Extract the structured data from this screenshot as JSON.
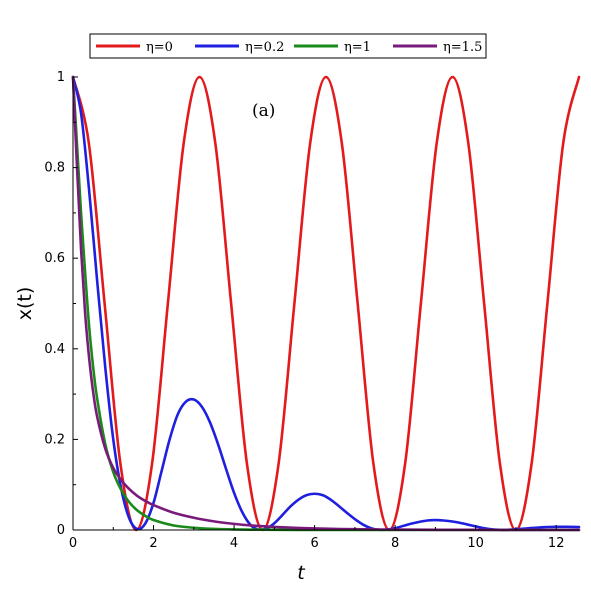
{
  "chart_data": {
    "type": "line",
    "xlabel": "t",
    "ylabel": "x(t)",
    "annotation": "(a)",
    "xlim": [
      0,
      12.566
    ],
    "ylim": [
      0,
      1
    ],
    "xticks": [
      "0",
      "2",
      "4",
      "6",
      "8",
      "10",
      "12"
    ],
    "yticks": [
      "0",
      "0.2",
      "0.4",
      "0.6",
      "0.8",
      "1"
    ],
    "grid": false,
    "legend_position": "top",
    "series": [
      {
        "name": "η=0",
        "color": "#e31a1c",
        "x": [
          0,
          0.393,
          0.785,
          1.178,
          1.571,
          1.963,
          2.356,
          2.749,
          3.142,
          3.534,
          3.927,
          4.32,
          4.712,
          5.105,
          5.498,
          5.89,
          6.283,
          6.676,
          7.069,
          7.461,
          7.854,
          8.247,
          8.639,
          9.032,
          9.425,
          9.817,
          10.21,
          10.603,
          10.996,
          11.388,
          11.781,
          12.174,
          12.566
        ],
        "y": [
          1,
          0.854,
          0.5,
          0.146,
          0,
          0.146,
          0.5,
          0.854,
          1,
          0.854,
          0.5,
          0.146,
          0,
          0.146,
          0.5,
          0.854,
          1,
          0.854,
          0.5,
          0.146,
          0,
          0.146,
          0.5,
          0.854,
          1,
          0.854,
          0.5,
          0.146,
          0,
          0.146,
          0.5,
          0.854,
          1
        ]
      },
      {
        "name": "η=0.2",
        "color": "#1f1fe0",
        "x": [
          0,
          0.2,
          0.4,
          0.6,
          0.8,
          1,
          1.2,
          1.4,
          1.6,
          1.8,
          2,
          2.2,
          2.4,
          2.6,
          2.8,
          3,
          3.2,
          3.4,
          3.6,
          3.8,
          4,
          4.2,
          4.4,
          4.6,
          4.8,
          5,
          5.2,
          5.4,
          5.6,
          5.8,
          6,
          6.2,
          6.4,
          6.6,
          6.8,
          7,
          7.2,
          7.4,
          7.6,
          7.8,
          8,
          8.2,
          8.4,
          8.6,
          8.8,
          9,
          9.2,
          9.4,
          9.6,
          9.8,
          10,
          10.2,
          10.4,
          10.6,
          10.8,
          11,
          11.2,
          11.4,
          11.6,
          11.8,
          12,
          12.2,
          12.4,
          12.566
        ],
        "y": [
          1,
          0.92,
          0.75,
          0.55,
          0.36,
          0.2,
          0.09,
          0.025,
          0.002,
          0.015,
          0.06,
          0.13,
          0.2,
          0.255,
          0.283,
          0.288,
          0.272,
          0.238,
          0.19,
          0.135,
          0.082,
          0.04,
          0.012,
          0.001,
          0.003,
          0.015,
          0.033,
          0.052,
          0.067,
          0.077,
          0.08,
          0.077,
          0.067,
          0.053,
          0.038,
          0.024,
          0.012,
          0.004,
          0.0005,
          0.001,
          0.004,
          0.009,
          0.014,
          0.018,
          0.021,
          0.022,
          0.021,
          0.019,
          0.016,
          0.012,
          0.008,
          0.004,
          0.0015,
          0.0003,
          0.0005,
          0.0015,
          0.003,
          0.0045,
          0.0058,
          0.0066,
          0.007,
          0.007,
          0.0068,
          0.0065
        ]
      },
      {
        "name": "η=1",
        "color": "#1a8a1a",
        "x": [
          0,
          0.1,
          0.2,
          0.3,
          0.4,
          0.5,
          0.6,
          0.8,
          1,
          1.2,
          1.4,
          1.6,
          1.8,
          2,
          2.5,
          3,
          3.5,
          4,
          4.5,
          5,
          6,
          7,
          8,
          9,
          10,
          11,
          12,
          12.566
        ],
        "y": [
          1,
          0.85,
          0.7,
          0.57,
          0.45,
          0.36,
          0.29,
          0.19,
          0.128,
          0.088,
          0.061,
          0.043,
          0.031,
          0.022,
          0.01,
          0.005,
          0.0025,
          0.0013,
          0.0007,
          0.0004,
          0.0001,
          0,
          0,
          0,
          0,
          0,
          0,
          0
        ]
      },
      {
        "name": "η=1.5",
        "color": "#7a1a7a",
        "x": [
          0,
          0.1,
          0.2,
          0.3,
          0.4,
          0.5,
          0.6,
          0.8,
          1,
          1.2,
          1.4,
          1.6,
          1.8,
          2,
          2.5,
          3,
          3.5,
          4,
          4.5,
          5,
          5.5,
          6,
          7,
          8,
          9,
          10,
          11,
          12,
          12.566
        ],
        "y": [
          1,
          0.8,
          0.62,
          0.48,
          0.38,
          0.305,
          0.25,
          0.18,
          0.137,
          0.11,
          0.09,
          0.075,
          0.064,
          0.055,
          0.038,
          0.027,
          0.019,
          0.0135,
          0.0095,
          0.0068,
          0.0048,
          0.0034,
          0.0017,
          0.0009,
          0.0005,
          0.0003,
          0.0002,
          0.0001,
          0.0001
        ]
      }
    ]
  }
}
